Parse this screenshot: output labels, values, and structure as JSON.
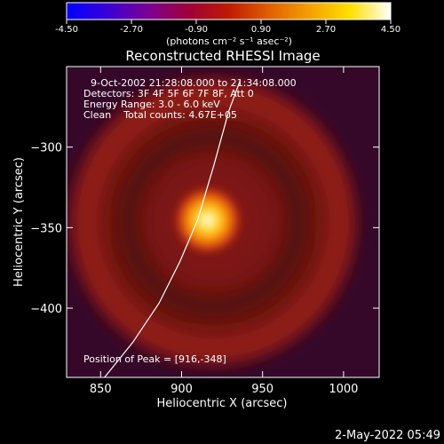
{
  "colorbar": {
    "ticks": [
      -4.5,
      -2.7,
      -0.9,
      0.9,
      2.7,
      4.5
    ],
    "tick_labels": [
      "-4.50",
      "-2.70",
      "-0.90",
      "0.90",
      "2.70",
      "4.50"
    ],
    "unit_label": "(photons cm⁻² s⁻¹ asec⁻²)",
    "stops": [
      "#0000ff",
      "#3a00d8",
      "#7a0094",
      "#a0003a",
      "#c01a00",
      "#e06000",
      "#f4a000",
      "#ffe000",
      "#ffffff"
    ]
  },
  "chart_data": {
    "type": "heatmap",
    "title": "Reconstructed RHESSI Image",
    "xlabel": "Heliocentric X (arcsec)",
    "ylabel": "Heliocentric Y (arcsec)",
    "xlim": [
      829,
      1022
    ],
    "ylim": [
      -443,
      -250
    ],
    "x_ticks": [
      850,
      900,
      950,
      1000
    ],
    "y_ticks": [
      -300,
      -350,
      -400
    ],
    "x_tick_labels": [
      "850",
      "900",
      "950",
      "1000"
    ],
    "y_tick_labels": [
      "−300",
      "−350",
      "−400"
    ],
    "peak": {
      "x": 916,
      "y": -348
    },
    "ring": {
      "center_x": 918,
      "center_y": -348,
      "radius_arcsec": 80
    },
    "limb_points": [
      [
        850,
        -446
      ],
      [
        870,
        -421
      ],
      [
        886,
        -397
      ],
      [
        899,
        -371
      ],
      [
        910,
        -345
      ],
      [
        920,
        -311
      ],
      [
        929,
        -278
      ],
      [
        936,
        -259
      ]
    ],
    "annotations": [
      "9-Oct-2002 21:28:08.000 to 21:34:08.000",
      "Detectors: 3F 4F 5F 6F 7F 8F, Att 0",
      "Energy Range: 3.0 - 6.0 keV",
      "Clean    Total counts: 4.67E+05"
    ],
    "peak_label": "Position of Peak = [916,-348]"
  },
  "timestamp": "2-May-2022 05:49"
}
